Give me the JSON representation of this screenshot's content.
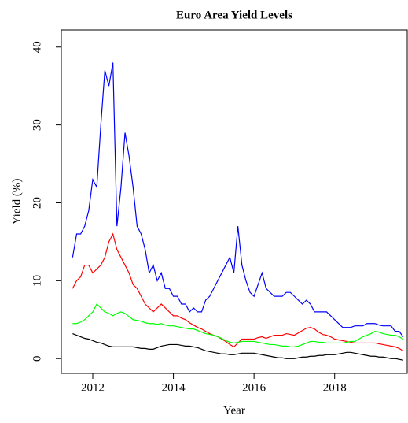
{
  "chart_data": {
    "type": "line",
    "title": "Euro Area Yield Levels",
    "x_label": "Year",
    "y_label": "Yield (%)",
    "x": [
      2011.5,
      2011.6,
      2011.7,
      2011.8,
      2011.9,
      2012.0,
      2012.1,
      2012.2,
      2012.3,
      2012.4,
      2012.5,
      2012.6,
      2012.7,
      2012.8,
      2012.9,
      2013.0,
      2013.1,
      2013.2,
      2013.3,
      2013.4,
      2013.5,
      2013.6,
      2013.7,
      2013.8,
      2013.9,
      2014.0,
      2014.1,
      2014.2,
      2014.3,
      2014.4,
      2014.5,
      2014.6,
      2014.7,
      2014.8,
      2014.9,
      2015.0,
      2015.1,
      2015.2,
      2015.3,
      2015.4,
      2015.5,
      2015.6,
      2015.7,
      2015.8,
      2015.9,
      2016.0,
      2016.1,
      2016.2,
      2016.3,
      2016.4,
      2016.5,
      2016.6,
      2016.7,
      2016.8,
      2016.9,
      2017.0,
      2017.1,
      2017.2,
      2017.3,
      2017.4,
      2017.5,
      2017.6,
      2017.7,
      2017.8,
      2017.9,
      2018.0,
      2018.1,
      2018.2,
      2018.3,
      2018.4,
      2018.5,
      2018.6,
      2018.7,
      2018.8,
      2018.9,
      2019.0,
      2019.1,
      2019.2,
      2019.3,
      2019.4,
      2019.5,
      2019.6,
      2019.7
    ],
    "series": [
      {
        "color": "#0000ff",
        "values": [
          13,
          16,
          16,
          17,
          19,
          23,
          22,
          30,
          37,
          35,
          38,
          17,
          22,
          29,
          26,
          22,
          17,
          16,
          14,
          11,
          12,
          10,
          11,
          9,
          9,
          8,
          8,
          7,
          7,
          6,
          6.5,
          6,
          6,
          7.5,
          8,
          9,
          10,
          11,
          12,
          13,
          11,
          17,
          12,
          10,
          8.5,
          8,
          9.5,
          11,
          9,
          8.5,
          8,
          8,
          8,
          8.5,
          8.5,
          8,
          7.5,
          7,
          7.5,
          7,
          6,
          6,
          6,
          6,
          5.5,
          5,
          4.5,
          4,
          4,
          4,
          4.2,
          4.2,
          4.2,
          4.5,
          4.5,
          4.5,
          4.3,
          4.2,
          4.2,
          4.2,
          3.5,
          3.5,
          2.8
        ]
      },
      {
        "color": "#ff0000",
        "values": [
          9,
          10,
          10.5,
          12,
          12,
          11,
          11.5,
          12,
          13,
          15,
          16,
          14,
          13,
          12,
          11,
          9.5,
          9,
          8,
          7,
          6.5,
          6,
          6.5,
          7,
          6.5,
          6,
          5.5,
          5.5,
          5.2,
          5,
          4.6,
          4.3,
          4,
          3.8,
          3.5,
          3.2,
          3,
          2.8,
          2.5,
          2.2,
          1.8,
          1.5,
          2,
          2.5,
          2.5,
          2.5,
          2.5,
          2.7,
          2.8,
          2.6,
          2.8,
          3,
          3,
          3,
          3.2,
          3.1,
          3,
          3.3,
          3.6,
          3.9,
          4,
          3.8,
          3.4,
          3.1,
          3,
          2.8,
          2.5,
          2.4,
          2.3,
          2.2,
          2.1,
          2,
          2,
          2,
          2,
          2,
          2,
          1.9,
          1.8,
          1.7,
          1.6,
          1.5,
          1.3,
          1
        ]
      },
      {
        "color": "#00ff00",
        "values": [
          4.5,
          4.5,
          4.7,
          5,
          5.5,
          6,
          7,
          6.5,
          6,
          5.8,
          5.5,
          5.8,
          6,
          5.8,
          5.4,
          5,
          4.9,
          4.8,
          4.6,
          4.5,
          4.5,
          4.4,
          4.5,
          4.3,
          4.2,
          4.2,
          4.1,
          4,
          3.9,
          3.8,
          3.8,
          3.6,
          3.4,
          3.2,
          3.1,
          3,
          2.8,
          2.6,
          2.3,
          2.1,
          2,
          2.1,
          2.2,
          2.2,
          2.2,
          2.2,
          2.1,
          2,
          1.9,
          1.8,
          1.8,
          1.7,
          1.6,
          1.6,
          1.5,
          1.5,
          1.6,
          1.8,
          2,
          2.2,
          2.2,
          2.1,
          2.1,
          2,
          2,
          2,
          2,
          2,
          2.1,
          2.2,
          2.2,
          2.5,
          2.8,
          3,
          3.2,
          3.5,
          3.4,
          3.2,
          3.1,
          3,
          3,
          2.8,
          2.5
        ]
      },
      {
        "color": "#000000",
        "values": [
          3.2,
          3,
          2.8,
          2.6,
          2.5,
          2.3,
          2.1,
          2,
          1.8,
          1.6,
          1.5,
          1.5,
          1.5,
          1.5,
          1.5,
          1.5,
          1.4,
          1.3,
          1.3,
          1.2,
          1.2,
          1.4,
          1.6,
          1.7,
          1.8,
          1.8,
          1.8,
          1.7,
          1.6,
          1.6,
          1.5,
          1.4,
          1.2,
          1,
          0.9,
          0.8,
          0.7,
          0.6,
          0.6,
          0.5,
          0.5,
          0.6,
          0.7,
          0.7,
          0.7,
          0.7,
          0.6,
          0.5,
          0.4,
          0.3,
          0.2,
          0.1,
          0.1,
          0,
          0,
          0,
          0.1,
          0.2,
          0.2,
          0.3,
          0.3,
          0.4,
          0.4,
          0.5,
          0.5,
          0.5,
          0.6,
          0.7,
          0.8,
          0.8,
          0.7,
          0.6,
          0.5,
          0.4,
          0.3,
          0.3,
          0.2,
          0.2,
          0.1,
          0,
          0,
          -0.1,
          -0.2
        ]
      }
    ],
    "xlim": [
      2011.22,
      2019.8
    ],
    "xticks": [
      2012,
      2014,
      2016,
      2018
    ],
    "ylim": [
      -1.9,
      42.2
    ],
    "yticks": [
      0,
      10,
      20,
      30,
      40
    ]
  }
}
